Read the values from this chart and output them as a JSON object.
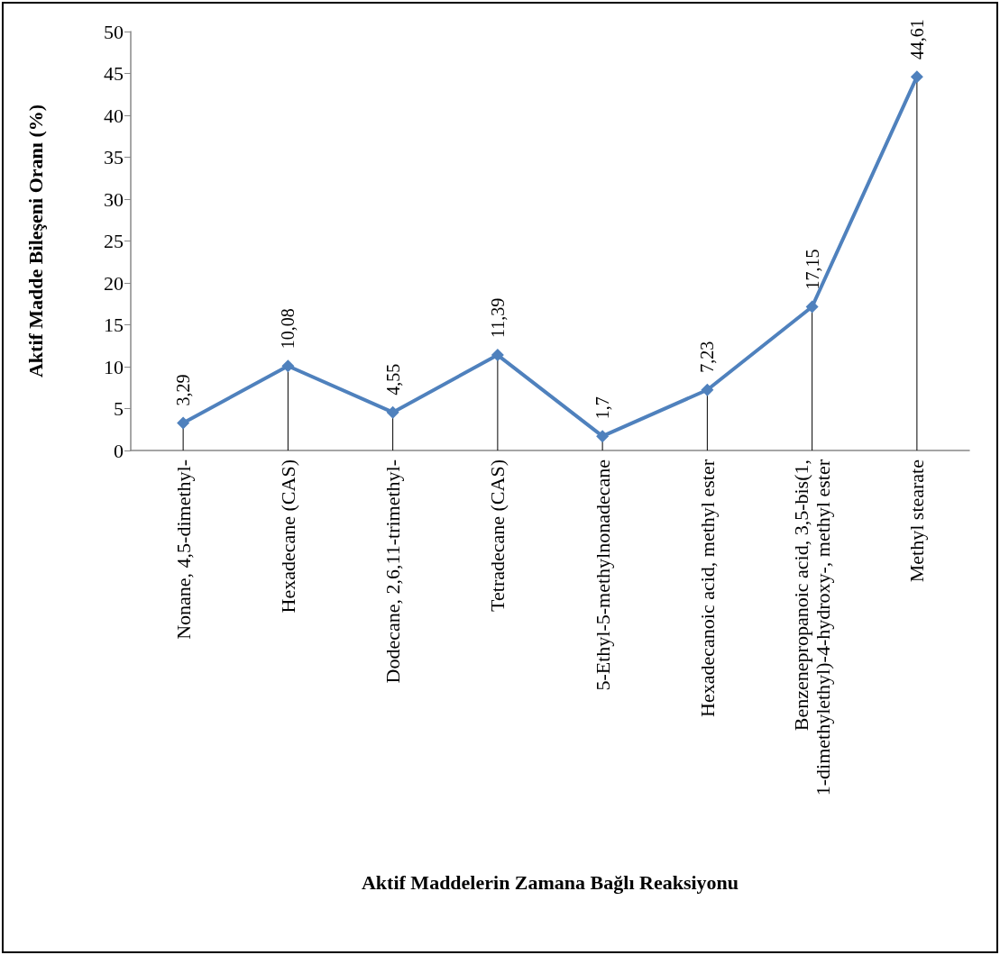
{
  "chart_data": {
    "type": "lollipop",
    "xlabel": "Aktif Maddelerin Zamana Bağlı Reaksiyonu",
    "ylabel": "Aktif Madde Bileşeni Oranı (%)",
    "categories": [
      "Nonane, 4,5-dimethyl-",
      "Hexadecane (CAS)",
      "Dodecane, 2,6,11-trimethyl-",
      "Tetradecane (CAS)",
      "5-Ethyl-5-methylnonadecane",
      "Hexadecanoic acid, methyl ester",
      "Benzenepropanoic acid, 3,5-bis(1,1-dimethylethyl)-4-hydroxy-, methyl ester",
      "Methyl stearate"
    ],
    "series": [
      {
        "color": "#4f81bd",
        "values": [
          3.29,
          10.08,
          4.55,
          11.39,
          1.7,
          7.23,
          17.15,
          44.61
        ],
        "value_labels": [
          "3,29",
          "10,08",
          "4,55",
          "11,39",
          "1,7",
          "7,23",
          "17,15",
          "44,61"
        ]
      }
    ],
    "ylim": [
      0,
      50
    ],
    "yticks": [
      0,
      5,
      10,
      15,
      20,
      25,
      30,
      35,
      40,
      45,
      50
    ],
    "grid": false,
    "marker": "diamond",
    "line_style": "solid"
  }
}
